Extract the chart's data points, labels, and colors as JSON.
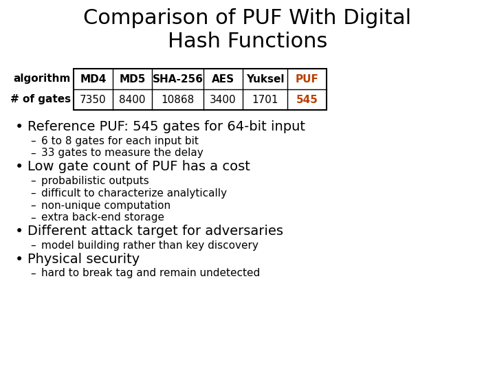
{
  "title_line1": "Comparison of PUF With Digital",
  "title_line2": "Hash Functions",
  "title_fontsize": 22,
  "title_color": "#000000",
  "background_color": "#ffffff",
  "table": {
    "headers": [
      "algorithm",
      "MD4",
      "MD5",
      "SHA-256",
      "AES",
      "Yuksel",
      "PUF"
    ],
    "row_label": "# of gates",
    "values": [
      "7350",
      "8400",
      "10868",
      "3400",
      "1701",
      "545"
    ],
    "puf_color": "#b84000",
    "border_color": "#000000",
    "fontsize": 11
  },
  "bullets": [
    {
      "text": "Reference PUF: 545 gates for 64-bit input",
      "level": 0,
      "fontsize": 14
    },
    {
      "text": "6 to 8 gates for each input bit",
      "level": 1,
      "fontsize": 11
    },
    {
      "text": "33 gates to measure the delay",
      "level": 1,
      "fontsize": 11
    },
    {
      "text": "Low gate count of PUF has a cost",
      "level": 0,
      "fontsize": 14
    },
    {
      "text": "probabilistic outputs",
      "level": 1,
      "fontsize": 11
    },
    {
      "text": "difficult to characterize analytically",
      "level": 1,
      "fontsize": 11
    },
    {
      "text": "non-unique computation",
      "level": 1,
      "fontsize": 11
    },
    {
      "text": "extra back-end storage",
      "level": 1,
      "fontsize": 11
    },
    {
      "text": "Different attack target for adversaries",
      "level": 0,
      "fontsize": 14
    },
    {
      "text": "model building rather than key discovery",
      "level": 1,
      "fontsize": 11
    },
    {
      "text": "Physical security",
      "level": 0,
      "fontsize": 14
    },
    {
      "text": "hard to break tag and remain undetected",
      "level": 1,
      "fontsize": 11
    }
  ]
}
